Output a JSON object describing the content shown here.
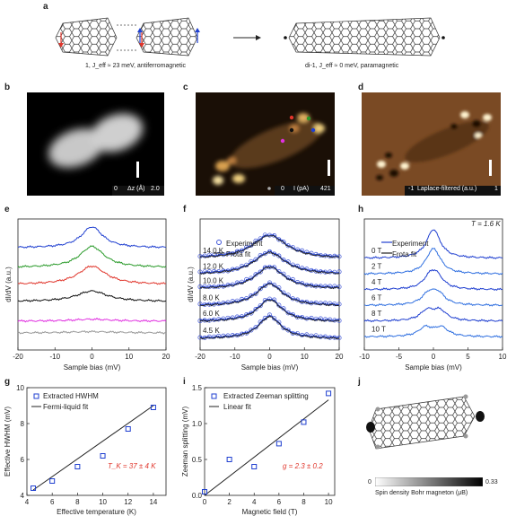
{
  "panel_a": {
    "label": "a",
    "left_caption": "1, J_eff ≈ 23 meV, antiferromagnetic",
    "right_caption": "di-1, J_eff ≈ 0 meV, paramagnetic"
  },
  "panel_b": {
    "label": "b",
    "cbar_min": "0",
    "cbar_unit": "Δz (Å)",
    "cbar_max": "2.0"
  },
  "panel_c": {
    "label": "c",
    "cbar_min": "0",
    "cbar_unit": "I (pA)",
    "cbar_max": "421"
  },
  "panel_d": {
    "label": "d",
    "cbar_min": "-1",
    "cbar_unit": "Laplace-filtered (a.u.)",
    "cbar_max": "1"
  },
  "panel_e": {
    "label": "e"
  },
  "panel_f": {
    "label": "f",
    "legend": [
      "Experiment",
      "Frota fit"
    ]
  },
  "panel_h": {
    "label": "h",
    "legend": [
      "Experiment",
      "Frota fit"
    ],
    "annotation": "T = 1.6 K"
  },
  "panel_g": {
    "label": "g"
  },
  "panel_i": {
    "label": "i"
  },
  "panel_j": {
    "label": "j",
    "cbar_min": "0",
    "cbar_max": "0.33",
    "cbar_label": "Spin density Bohr magneton (μB)"
  },
  "chart_data": [
    {
      "type": "line",
      "panel": "e",
      "xlabel": "Sample bias (mV)",
      "ylabel": "dI/dV (a.u.)",
      "xlim": [
        -20,
        20
      ],
      "x_ticks": [
        "-20",
        "-10",
        "0",
        "10",
        "20"
      ],
      "series": [
        {
          "color": "#1f3fd0",
          "offset": 0.78,
          "amp": 0.16,
          "width": 3.5
        },
        {
          "color": "#2a9a2a",
          "offset": 0.63,
          "amp": 0.16,
          "width": 4.0
        },
        {
          "color": "#e0352b",
          "offset": 0.5,
          "amp": 0.14,
          "width": 4.5
        },
        {
          "color": "#111111",
          "offset": 0.37,
          "amp": 0.08,
          "width": 5.0
        },
        {
          "color": "#e030e0",
          "offset": 0.22,
          "amp": 0.015,
          "width": 6.0
        },
        {
          "color": "#999999",
          "offset": 0.13,
          "amp": 0.01,
          "width": 8.0
        }
      ]
    },
    {
      "type": "line",
      "panel": "f",
      "xlabel": "Sample bias (mV)",
      "ylabel": "dI/dV (a.u.)",
      "xlim": [
        -20,
        20
      ],
      "x_ticks": [
        "-20",
        "-10",
        "0",
        "10",
        "20"
      ],
      "series": [
        {
          "name": "14.0 K",
          "offset": 0.7,
          "amp": 0.18,
          "width": 6.0
        },
        {
          "name": "12.0 K",
          "offset": 0.58,
          "amp": 0.17,
          "width": 5.5
        },
        {
          "name": "10.0 K",
          "offset": 0.47,
          "amp": 0.17,
          "width": 5.0
        },
        {
          "name": "8.0 K",
          "offset": 0.34,
          "amp": 0.17,
          "width": 4.6
        },
        {
          "name": "6.0 K",
          "offset": 0.22,
          "amp": 0.17,
          "width": 4.3
        },
        {
          "name": "4.5 K",
          "offset": 0.09,
          "amp": 0.17,
          "width": 4.0
        }
      ]
    },
    {
      "type": "line",
      "panel": "h",
      "xlabel": "Sample bias (mV)",
      "xlim": [
        -10,
        10
      ],
      "x_ticks": [
        "-10",
        "-5",
        "0",
        "5",
        "10"
      ],
      "series": [
        {
          "name": "0 T",
          "offset": 0.7,
          "amp": 0.22,
          "split": 0.0
        },
        {
          "name": "2 T",
          "offset": 0.58,
          "amp": 0.16,
          "split": 0.23
        },
        {
          "name": "4 T",
          "offset": 0.46,
          "amp": 0.14,
          "split": 0.46
        },
        {
          "name": "6 T",
          "offset": 0.34,
          "amp": 0.13,
          "split": 0.69
        },
        {
          "name": "8 T",
          "offset": 0.22,
          "amp": 0.12,
          "split": 0.92
        },
        {
          "name": "10 T",
          "offset": 0.1,
          "amp": 0.11,
          "split": 1.15
        }
      ]
    },
    {
      "type": "scatter",
      "panel": "g",
      "xlabel": "Effective temperature (K)",
      "ylabel": "Effective HWHM (mV)",
      "xlim": [
        4,
        15
      ],
      "ylim": [
        4,
        10
      ],
      "x_ticks": [
        "4",
        "6",
        "8",
        "10",
        "12",
        "14"
      ],
      "y_ticks": [
        "4",
        "6",
        "8",
        "10"
      ],
      "legend": [
        "Extracted HWHM",
        "Fermi-liquid fit"
      ],
      "annotation": "T_K = 37 ± 4 K",
      "x": [
        4.5,
        6.0,
        8.0,
        10.0,
        12.0,
        14.0
      ],
      "y": [
        4.4,
        4.8,
        5.6,
        6.2,
        7.7,
        8.9
      ],
      "fit": {
        "x": [
          4.5,
          14.0
        ],
        "y": [
          4.3,
          9.0
        ]
      }
    },
    {
      "type": "scatter",
      "panel": "i",
      "xlabel": "Magnetic field (T)",
      "ylabel": "Zeeman splitting (mV)",
      "xlim": [
        0,
        10.5
      ],
      "ylim": [
        0,
        1.5
      ],
      "x_ticks": [
        "0",
        "2",
        "4",
        "6",
        "8",
        "10"
      ],
      "y_ticks": [
        "0.0",
        "0.5",
        "1.0",
        "1.5"
      ],
      "legend": [
        "Extracted Zeeman splitting",
        "Linear fit"
      ],
      "annotation": "g = 2.3 ± 0.2",
      "x": [
        0,
        2,
        4,
        6,
        8,
        10
      ],
      "y": [
        0.05,
        0.5,
        0.4,
        0.72,
        1.02,
        1.42
      ],
      "fit": {
        "x": [
          0,
          10
        ],
        "y": [
          0.0,
          1.33
        ]
      }
    }
  ]
}
